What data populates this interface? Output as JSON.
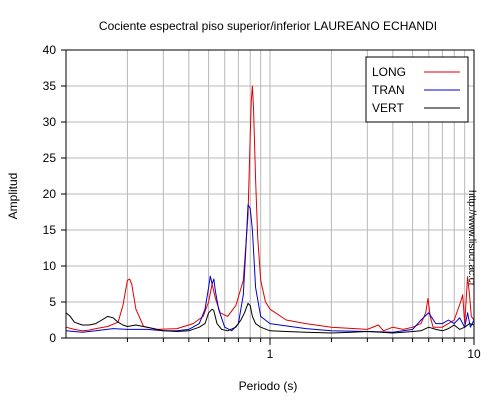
{
  "side_note": "http://www.lisucr.ac.cr",
  "chart_data": {
    "type": "line",
    "title": "Cociente espectral piso superior/inferior LAUREANO ECHANDI",
    "xlabel": "Periodo (s)",
    "ylabel": "Amplitud",
    "xscale": "log",
    "xlim": [
      0.1,
      10
    ],
    "ylim": [
      0,
      40
    ],
    "xticks": [
      1,
      10
    ],
    "yticks": [
      0,
      5,
      10,
      15,
      20,
      25,
      30,
      35,
      40
    ],
    "grid": true,
    "legend_position": "top-right",
    "series": [
      {
        "name": "LONG",
        "color": "#e00000",
        "x": [
          0.1,
          0.11,
          0.12,
          0.13,
          0.14,
          0.16,
          0.18,
          0.19,
          0.2,
          0.205,
          0.21,
          0.22,
          0.24,
          0.28,
          0.35,
          0.42,
          0.47,
          0.5,
          0.52,
          0.54,
          0.57,
          0.62,
          0.68,
          0.74,
          0.78,
          0.8,
          0.81,
          0.82,
          0.83,
          0.85,
          0.87,
          0.9,
          0.95,
          1.0,
          1.2,
          1.5,
          2,
          3,
          3.4,
          3.6,
          4,
          4.5,
          5,
          5.5,
          5.8,
          5.95,
          6.1,
          6.3,
          7,
          8,
          8.6,
          8.8,
          9,
          9.3,
          9.5,
          9.7,
          10
        ],
        "y": [
          1.5,
          1.2,
          1.0,
          1.1,
          1.3,
          1.6,
          2.2,
          4.5,
          8.0,
          8.2,
          7.5,
          4.0,
          1.6,
          1.2,
          1.3,
          2.0,
          3.0,
          5.0,
          7.5,
          5.5,
          3.5,
          3.0,
          4.5,
          8.0,
          17.0,
          28.0,
          33.0,
          35.0,
          32.0,
          22.0,
          14.0,
          8.0,
          5.0,
          4.0,
          2.5,
          2.0,
          1.5,
          1.2,
          1.8,
          1.0,
          1.5,
          1.2,
          1.5,
          2.0,
          3.5,
          5.5,
          3.0,
          1.5,
          1.5,
          2.5,
          5.0,
          6.0,
          2.0,
          8.5,
          6.0,
          3.0,
          2.5
        ]
      },
      {
        "name": "TRAN",
        "color": "#0000cc",
        "x": [
          0.1,
          0.12,
          0.14,
          0.17,
          0.2,
          0.25,
          0.3,
          0.35,
          0.4,
          0.45,
          0.48,
          0.5,
          0.51,
          0.52,
          0.53,
          0.54,
          0.56,
          0.6,
          0.65,
          0.7,
          0.74,
          0.76,
          0.78,
          0.8,
          0.82,
          0.85,
          0.9,
          1.0,
          1.5,
          2,
          3,
          4,
          5,
          5.5,
          6,
          6.5,
          7,
          7.5,
          8,
          8.5,
          9,
          9.3,
          9.6,
          10
        ],
        "y": [
          1.0,
          0.8,
          1.0,
          1.3,
          1.2,
          1.2,
          1.0,
          1.0,
          1.2,
          2.0,
          4.0,
          7.0,
          8.6,
          7.5,
          8.2,
          6.5,
          4.0,
          1.5,
          1.0,
          2.0,
          6.0,
          12.0,
          18.5,
          18.0,
          15.0,
          7.0,
          3.0,
          2.0,
          1.3,
          1.0,
          0.9,
          0.8,
          1.2,
          2.5,
          3.5,
          2.0,
          2.0,
          2.5,
          2.0,
          2.8,
          1.5,
          3.5,
          1.5,
          2.5
        ]
      },
      {
        "name": "VERT",
        "color": "#000000",
        "x": [
          0.1,
          0.105,
          0.11,
          0.12,
          0.13,
          0.14,
          0.15,
          0.16,
          0.17,
          0.18,
          0.19,
          0.2,
          0.22,
          0.25,
          0.3,
          0.35,
          0.4,
          0.45,
          0.48,
          0.5,
          0.52,
          0.53,
          0.55,
          0.58,
          0.62,
          0.68,
          0.72,
          0.75,
          0.78,
          0.8,
          0.82,
          0.85,
          0.9,
          1.0,
          1.2,
          1.5,
          2,
          2.5,
          3,
          3.5,
          4,
          4.5,
          5,
          5.5,
          6,
          6.5,
          7,
          7.5,
          8,
          8.5,
          9,
          9.5,
          10
        ],
        "y": [
          3.5,
          3.0,
          2.2,
          1.8,
          1.8,
          2.0,
          2.5,
          3.0,
          2.8,
          2.2,
          1.8,
          1.6,
          1.8,
          1.5,
          1.0,
          0.9,
          1.0,
          1.5,
          2.0,
          3.5,
          4.0,
          3.8,
          2.0,
          1.2,
          1.0,
          1.5,
          2.5,
          3.5,
          4.8,
          4.5,
          3.0,
          2.0,
          1.5,
          1.0,
          0.9,
          0.8,
          0.7,
          0.8,
          0.9,
          0.8,
          0.7,
          0.8,
          0.9,
          1.0,
          1.5,
          1.2,
          1.0,
          1.3,
          1.8,
          1.2,
          1.5,
          2.0,
          1.8
        ]
      }
    ]
  }
}
